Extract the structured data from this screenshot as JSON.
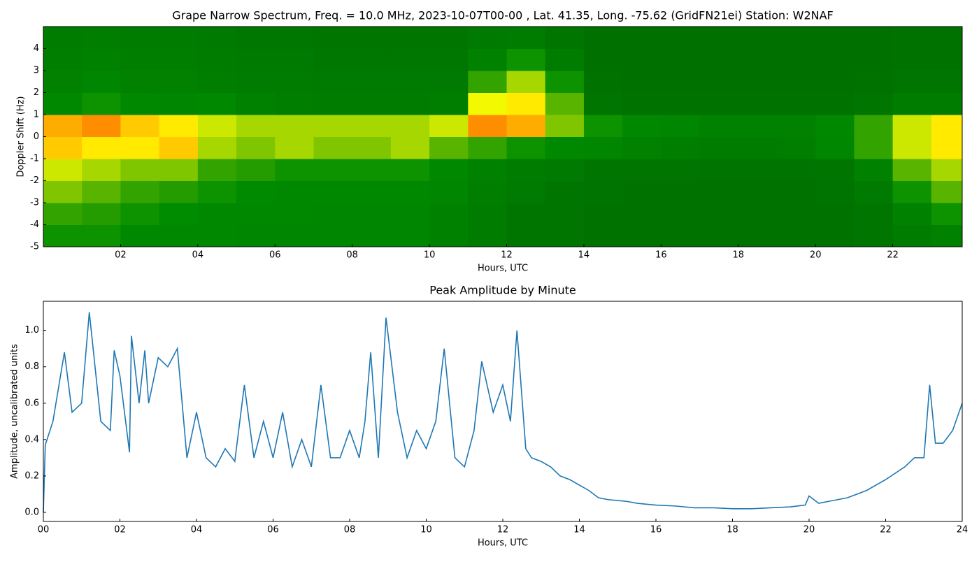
{
  "chart_data": [
    {
      "type": "heatmap",
      "title": "Grape Narrow Spectrum, Freq. = 10.0 MHz, 2023-10-07T00-00 , Lat.  41.35, Long. -75.62 (GridFN21ei) Station: W2NAF",
      "xlabel": "Hours, UTC",
      "ylabel": "Doppler Shift (Hz)",
      "xlim": [
        0,
        23.8
      ],
      "ylim": [
        -5,
        5
      ],
      "xticks": [
        {
          "value": 2,
          "label": "02"
        },
        {
          "value": 4,
          "label": "04"
        },
        {
          "value": 6,
          "label": "06"
        },
        {
          "value": 8,
          "label": "08"
        },
        {
          "value": 10,
          "label": "10"
        },
        {
          "value": 12,
          "label": "12"
        },
        {
          "value": 14,
          "label": "14"
        },
        {
          "value": 16,
          "label": "16"
        },
        {
          "value": 18,
          "label": "18"
        },
        {
          "value": 20,
          "label": "20"
        },
        {
          "value": 22,
          "label": "22"
        }
      ],
      "yticks": [
        -5,
        -4,
        -3,
        -2,
        -1,
        0,
        1,
        2,
        3,
        4
      ],
      "xbins": [
        0,
        1,
        2,
        3,
        4,
        5,
        6,
        7,
        8,
        9,
        10,
        11,
        12,
        13,
        14,
        15,
        16,
        17,
        18,
        19,
        20,
        21,
        22,
        23,
        24
      ],
      "ybins": [
        -5,
        -4,
        -3,
        -2,
        -1,
        0,
        1,
        2,
        3,
        4,
        5
      ],
      "clim": [
        0,
        1
      ],
      "colormap": [
        "#006400",
        "#008c00",
        "#ffff00",
        "#ff3000"
      ],
      "values": [
        [
          0.35,
          0.35,
          0.3,
          0.3,
          0.3,
          0.28,
          0.28,
          0.28,
          0.28,
          0.28,
          0.25,
          0.2,
          0.15,
          0.15,
          0.12,
          0.12,
          0.12,
          0.12,
          0.12,
          0.12,
          0.12,
          0.15,
          0.2,
          0.25
        ],
        [
          0.4,
          0.38,
          0.35,
          0.33,
          0.3,
          0.3,
          0.3,
          0.28,
          0.28,
          0.28,
          0.25,
          0.2,
          0.15,
          0.15,
          0.12,
          0.12,
          0.12,
          0.12,
          0.12,
          0.12,
          0.12,
          0.15,
          0.25,
          0.35
        ],
        [
          0.5,
          0.45,
          0.4,
          0.38,
          0.35,
          0.32,
          0.3,
          0.3,
          0.3,
          0.3,
          0.28,
          0.22,
          0.18,
          0.15,
          0.13,
          0.12,
          0.12,
          0.12,
          0.12,
          0.12,
          0.13,
          0.18,
          0.35,
          0.45
        ],
        [
          0.6,
          0.55,
          0.5,
          0.5,
          0.4,
          0.38,
          0.35,
          0.35,
          0.35,
          0.35,
          0.3,
          0.25,
          0.2,
          0.18,
          0.15,
          0.14,
          0.14,
          0.13,
          0.13,
          0.13,
          0.15,
          0.25,
          0.45,
          0.55
        ],
        [
          0.75,
          0.7,
          0.7,
          0.75,
          0.55,
          0.5,
          0.55,
          0.5,
          0.5,
          0.55,
          0.45,
          0.4,
          0.35,
          0.3,
          0.28,
          0.25,
          0.22,
          0.2,
          0.2,
          0.22,
          0.28,
          0.4,
          0.6,
          0.7
        ],
        [
          0.8,
          0.85,
          0.75,
          0.7,
          0.6,
          0.55,
          0.55,
          0.55,
          0.55,
          0.55,
          0.6,
          0.85,
          0.8,
          0.5,
          0.35,
          0.3,
          0.28,
          0.25,
          0.25,
          0.25,
          0.3,
          0.4,
          0.6,
          0.7
        ],
        [
          0.3,
          0.35,
          0.3,
          0.28,
          0.3,
          0.25,
          0.22,
          0.2,
          0.2,
          0.2,
          0.22,
          0.65,
          0.7,
          0.45,
          0.15,
          0.12,
          0.12,
          0.12,
          0.12,
          0.12,
          0.12,
          0.15,
          0.2,
          0.2
        ],
        [
          0.25,
          0.28,
          0.25,
          0.25,
          0.22,
          0.2,
          0.2,
          0.18,
          0.18,
          0.18,
          0.18,
          0.4,
          0.55,
          0.35,
          0.12,
          0.1,
          0.1,
          0.1,
          0.1,
          0.1,
          0.1,
          0.12,
          0.15,
          0.15
        ],
        [
          0.22,
          0.25,
          0.22,
          0.22,
          0.2,
          0.18,
          0.18,
          0.16,
          0.16,
          0.16,
          0.16,
          0.25,
          0.35,
          0.2,
          0.1,
          0.1,
          0.1,
          0.1,
          0.1,
          0.1,
          0.1,
          0.1,
          0.12,
          0.12
        ],
        [
          0.2,
          0.22,
          0.2,
          0.2,
          0.18,
          0.16,
          0.16,
          0.15,
          0.15,
          0.15,
          0.15,
          0.18,
          0.2,
          0.15,
          0.1,
          0.1,
          0.1,
          0.1,
          0.1,
          0.1,
          0.1,
          0.1,
          0.12,
          0.12
        ]
      ]
    },
    {
      "type": "line",
      "title": "Peak Amplitude by Minute",
      "xlabel": "Hours, UTC",
      "ylabel": "Amplitude, uncalibrated units",
      "color": "#1f77b4",
      "xlim": [
        0,
        24
      ],
      "ylim": [
        -0.05,
        1.16
      ],
      "xticks": [
        {
          "value": 0,
          "label": "00"
        },
        {
          "value": 2,
          "label": "02"
        },
        {
          "value": 4,
          "label": "04"
        },
        {
          "value": 6,
          "label": "06"
        },
        {
          "value": 8,
          "label": "08"
        },
        {
          "value": 10,
          "label": "10"
        },
        {
          "value": 12,
          "label": "12"
        },
        {
          "value": 14,
          "label": "14"
        },
        {
          "value": 16,
          "label": "16"
        },
        {
          "value": 18,
          "label": "18"
        },
        {
          "value": 20,
          "label": "20"
        },
        {
          "value": 22,
          "label": "22"
        },
        {
          "value": 24,
          "label": "24"
        }
      ],
      "yticks": [
        {
          "value": 0,
          "label": "0.0"
        },
        {
          "value": 0.2,
          "label": "0.2"
        },
        {
          "value": 0.4,
          "label": "0.4"
        },
        {
          "value": 0.6,
          "label": "0.6"
        },
        {
          "value": 0.8,
          "label": "0.8"
        },
        {
          "value": 1,
          "label": "1.0"
        }
      ],
      "x": [
        0,
        0.05,
        0.25,
        0.55,
        0.75,
        1.0,
        1.2,
        1.5,
        1.75,
        1.85,
        2.0,
        2.25,
        2.3,
        2.5,
        2.65,
        2.75,
        3.0,
        3.25,
        3.5,
        3.75,
        4.0,
        4.25,
        4.5,
        4.75,
        5.0,
        5.25,
        5.5,
        5.75,
        6.0,
        6.25,
        6.5,
        6.75,
        7.0,
        7.25,
        7.5,
        7.75,
        8.0,
        8.25,
        8.4,
        8.55,
        8.75,
        8.95,
        9.25,
        9.5,
        9.75,
        10.0,
        10.25,
        10.47,
        10.75,
        11.0,
        11.25,
        11.45,
        11.75,
        12.0,
        12.2,
        12.37,
        12.6,
        12.75,
        13.0,
        13.25,
        13.5,
        13.75,
        14.0,
        14.25,
        14.5,
        14.75,
        15.0,
        15.25,
        15.5,
        15.75,
        16.0,
        16.5,
        17.0,
        17.5,
        18.0,
        18.5,
        19.0,
        19.5,
        19.9,
        20.0,
        20.25,
        20.5,
        21.0,
        21.5,
        22.0,
        22.5,
        22.75,
        23.0,
        23.15,
        23.3,
        23.5,
        23.75,
        24.0
      ],
      "values": [
        0.0,
        0.37,
        0.5,
        0.88,
        0.55,
        0.6,
        1.1,
        0.5,
        0.45,
        0.89,
        0.75,
        0.33,
        0.97,
        0.6,
        0.89,
        0.6,
        0.85,
        0.8,
        0.9,
        0.3,
        0.55,
        0.3,
        0.25,
        0.35,
        0.28,
        0.7,
        0.3,
        0.5,
        0.3,
        0.55,
        0.25,
        0.4,
        0.25,
        0.7,
        0.3,
        0.3,
        0.45,
        0.3,
        0.5,
        0.88,
        0.3,
        1.07,
        0.55,
        0.3,
        0.45,
        0.35,
        0.5,
        0.9,
        0.3,
        0.25,
        0.45,
        0.83,
        0.55,
        0.7,
        0.5,
        1.0,
        0.35,
        0.3,
        0.28,
        0.25,
        0.2,
        0.18,
        0.15,
        0.12,
        0.08,
        0.07,
        0.065,
        0.06,
        0.05,
        0.045,
        0.04,
        0.035,
        0.025,
        0.025,
        0.02,
        0.02,
        0.025,
        0.03,
        0.04,
        0.09,
        0.05,
        0.06,
        0.08,
        0.12,
        0.18,
        0.25,
        0.3,
        0.3,
        0.7,
        0.38,
        0.38,
        0.45,
        0.6
      ]
    }
  ]
}
